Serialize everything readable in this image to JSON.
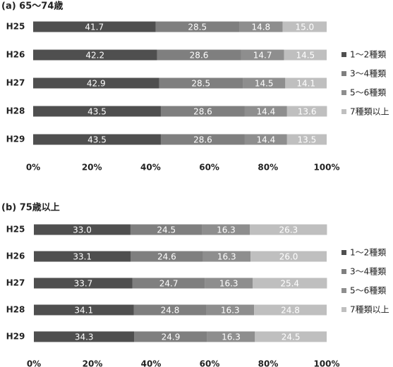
{
  "chart_data": [
    {
      "type": "stacked_bar_horizontal",
      "title": "(a) 65～74歳",
      "categories": [
        "H25",
        "H26",
        "H27",
        "H28",
        "H29"
      ],
      "series": [
        {
          "name": "1～2種類",
          "color": "#4f4f4f",
          "values": [
            41.7,
            42.2,
            42.9,
            43.5,
            43.5
          ],
          "value_labels": [
            "41.7",
            "42.2",
            "42.9",
            "43.5",
            "43.5"
          ]
        },
        {
          "name": "3～4種類",
          "color": "#7f7f7f",
          "values": [
            28.5,
            28.6,
            28.5,
            28.6,
            28.6
          ],
          "value_labels": [
            "28.5",
            "28.6",
            "28.5",
            "28.6",
            "28.6"
          ]
        },
        {
          "name": "5～6種類",
          "color": "#8e8e8e",
          "values": [
            14.8,
            14.7,
            14.5,
            14.4,
            14.4
          ],
          "value_labels": [
            "14.8",
            "14.7",
            "14.5",
            "14.4",
            "14.4"
          ]
        },
        {
          "name": "7種類以上",
          "color": "#bfbfbf",
          "values": [
            15.0,
            14.5,
            14.1,
            13.6,
            13.5
          ],
          "value_labels": [
            "15.0",
            "14.5",
            "14.1",
            "13.6",
            "13.5"
          ]
        }
      ],
      "xlim": [
        0,
        100
      ],
      "xticks": [
        {
          "value": 0,
          "label": "0%"
        },
        {
          "value": 20,
          "label": "20%"
        },
        {
          "value": 40,
          "label": "40%"
        },
        {
          "value": 60,
          "label": "60%"
        },
        {
          "value": 80,
          "label": "80%"
        },
        {
          "value": 100,
          "label": "100%"
        }
      ],
      "legend": "right"
    },
    {
      "type": "stacked_bar_horizontal",
      "title": "(b) 75歳以上",
      "categories": [
        "H25",
        "H26",
        "H27",
        "H28",
        "H29"
      ],
      "series": [
        {
          "name": "1～2種類",
          "color": "#4f4f4f",
          "values": [
            33.0,
            33.1,
            33.7,
            34.1,
            34.3
          ],
          "value_labels": [
            "33.0",
            "33.1",
            "33.7",
            "34.1",
            "34.3"
          ]
        },
        {
          "name": "3～4種類",
          "color": "#7f7f7f",
          "values": [
            24.5,
            24.6,
            24.7,
            24.8,
            24.9
          ],
          "value_labels": [
            "24.5",
            "24.6",
            "24.7",
            "24.8",
            "24.9"
          ]
        },
        {
          "name": "5～6種類",
          "color": "#8e8e8e",
          "values": [
            16.3,
            16.3,
            16.3,
            16.3,
            16.3
          ],
          "value_labels": [
            "16.3",
            "16.3",
            "16.3",
            "16.3",
            "16.3"
          ]
        },
        {
          "name": "7種類以上",
          "color": "#bfbfbf",
          "values": [
            26.3,
            26.0,
            25.4,
            24.8,
            24.5
          ],
          "value_labels": [
            "26.3",
            "26.0",
            "25.4",
            "24.8",
            "24.5"
          ]
        }
      ],
      "xlim": [
        0,
        100
      ],
      "xticks": [
        {
          "value": 0,
          "label": "0%"
        },
        {
          "value": 20,
          "label": "20%"
        },
        {
          "value": 40,
          "label": "40%"
        },
        {
          "value": 60,
          "label": "60%"
        },
        {
          "value": 80,
          "label": "80%"
        },
        {
          "value": 100,
          "label": "100%"
        }
      ],
      "legend": "right"
    }
  ]
}
